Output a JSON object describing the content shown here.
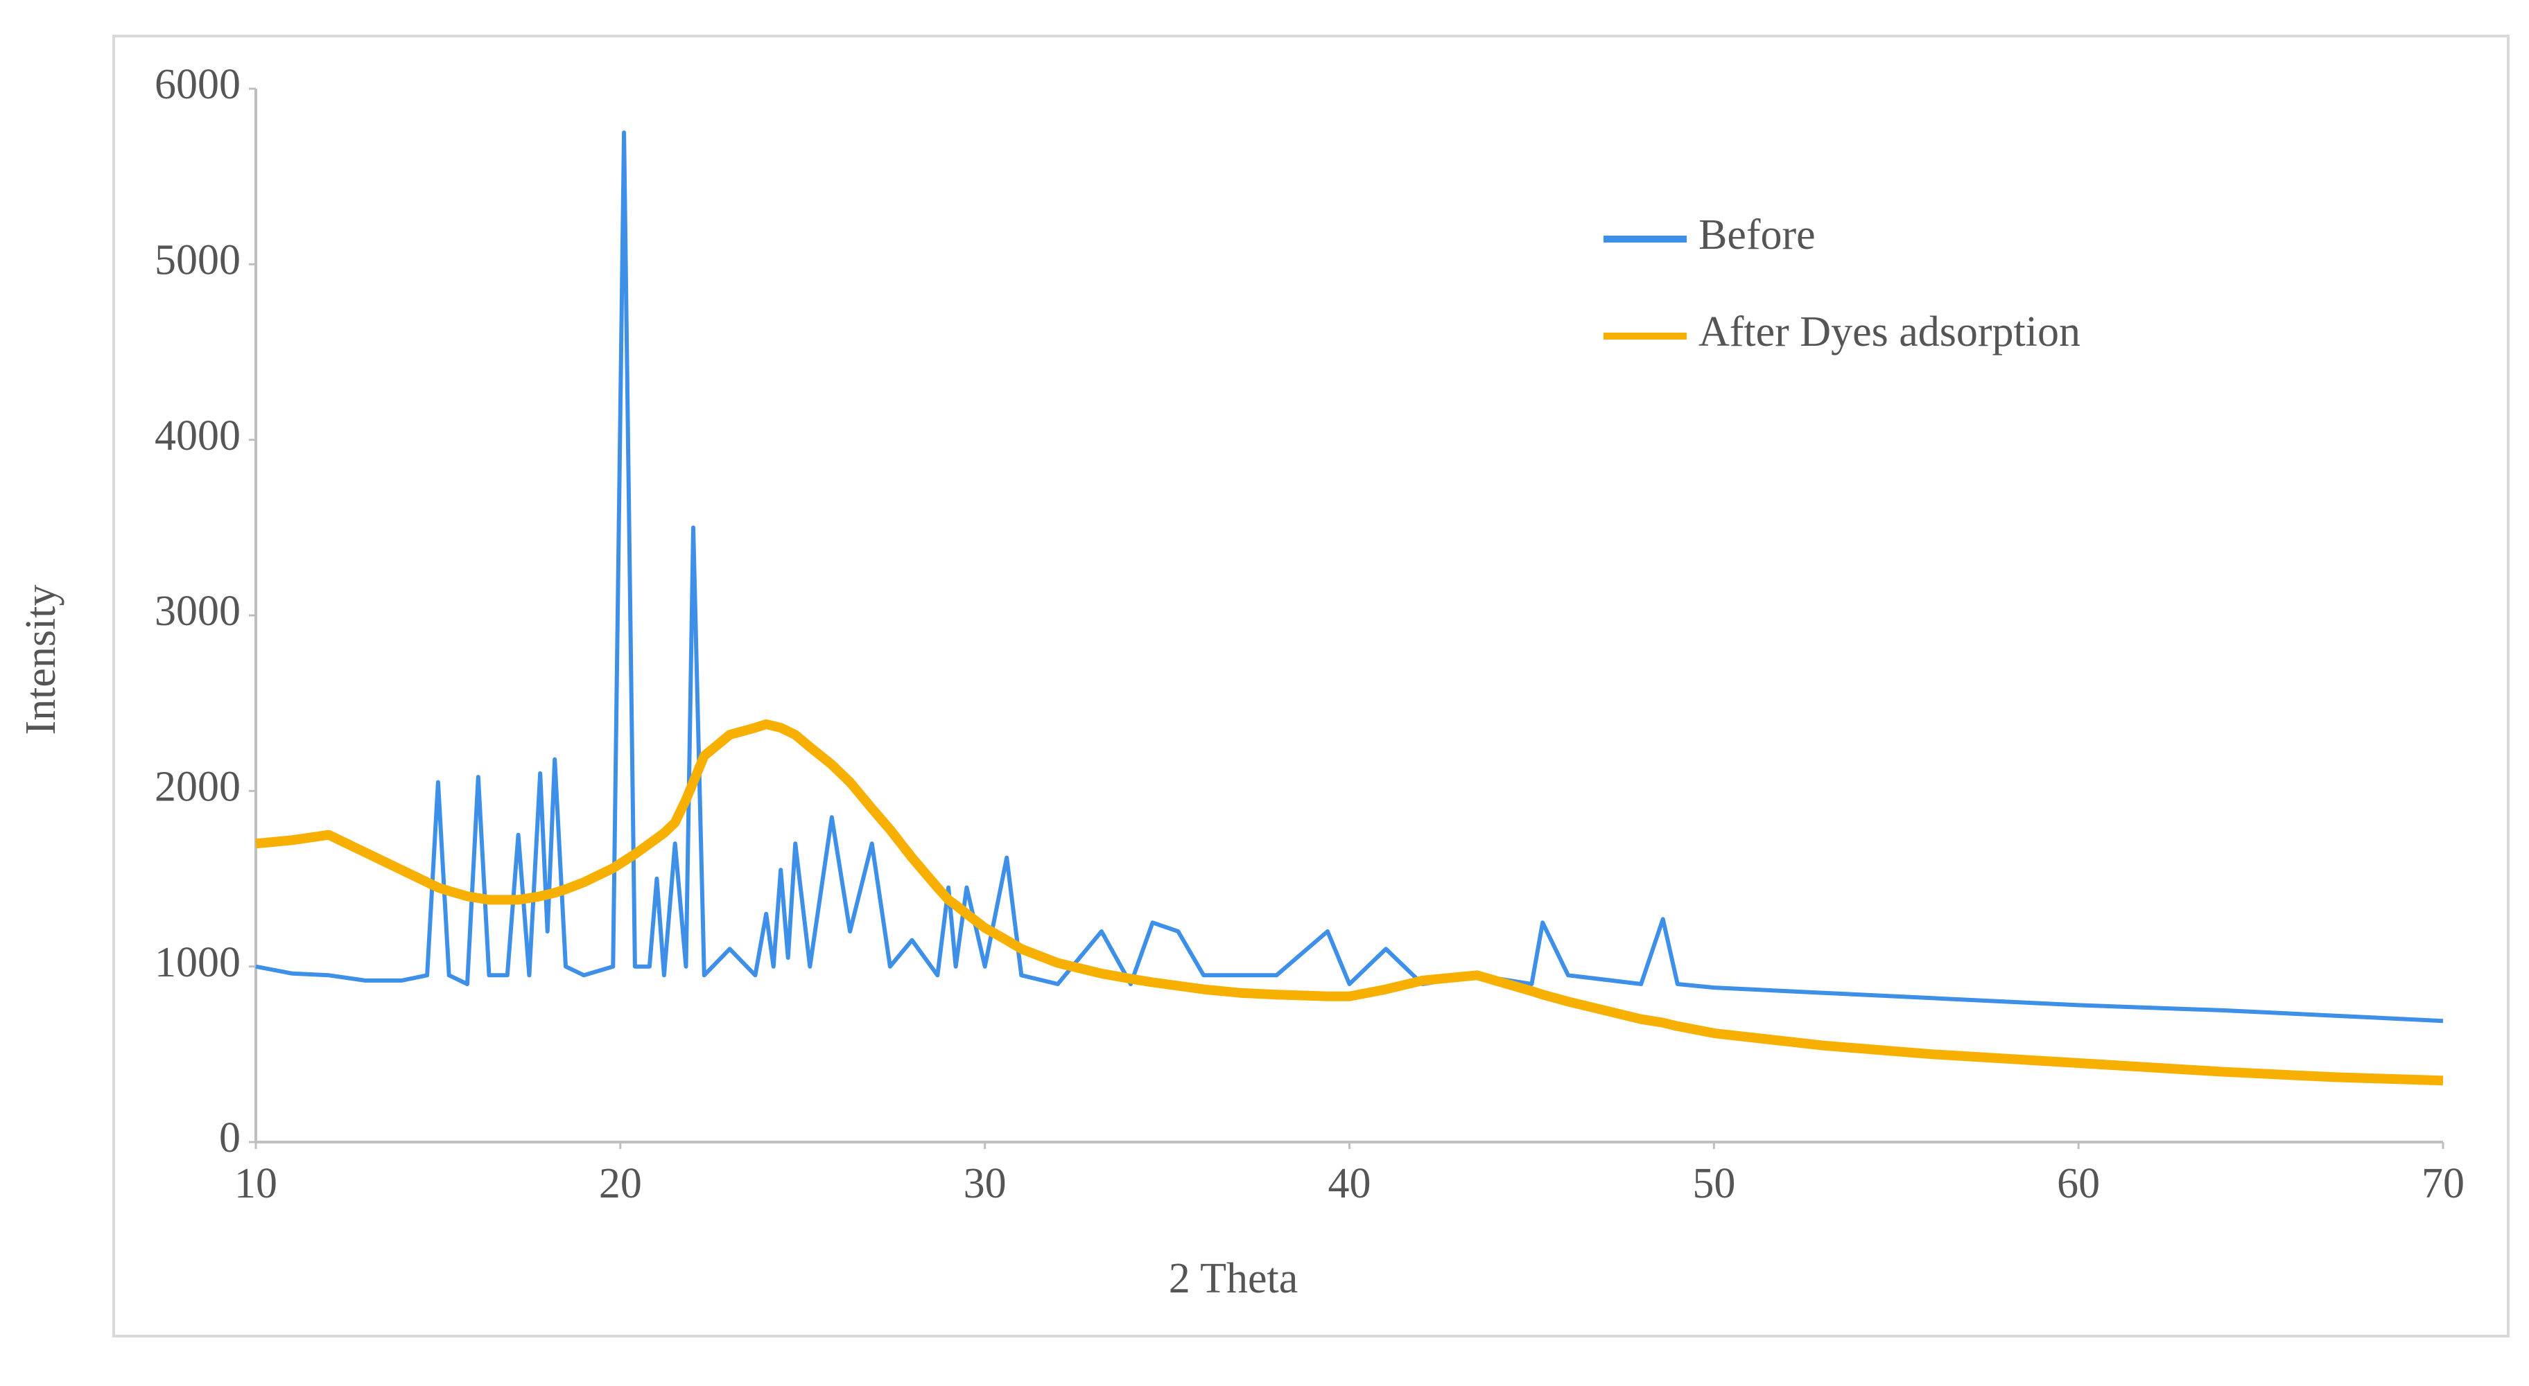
{
  "chart_data": {
    "type": "line",
    "x_label": "2 Theta",
    "y_label": "Intensity",
    "xlim": [
      10,
      70
    ],
    "xticks": [
      10,
      20,
      30,
      40,
      50,
      60,
      70
    ],
    "ylim": [
      0,
      6000
    ],
    "yticks": [
      0,
      1000,
      2000,
      3000,
      4000,
      5000,
      6000
    ],
    "x": [
      10,
      11,
      12,
      13,
      14,
      14.7,
      15.0,
      15.3,
      15.8,
      16.1,
      16.4,
      16.9,
      17.2,
      17.5,
      17.8,
      18.0,
      18.2,
      18.5,
      19.0,
      19.8,
      20.1,
      20.4,
      20.8,
      21.0,
      21.2,
      21.5,
      21.8,
      22.0,
      22.3,
      23.0,
      23.7,
      24.0,
      24.2,
      24.4,
      24.6,
      24.8,
      25.2,
      25.8,
      26.3,
      26.9,
      27.4,
      28.0,
      28.7,
      29.0,
      29.2,
      29.5,
      30.0,
      30.6,
      31.0,
      32.0,
      33.2,
      34.0,
      34.6,
      35.3,
      36.0,
      37.0,
      38.0,
      39.4,
      40.0,
      41.0,
      42.0,
      43.5,
      45.0,
      45.3,
      46.0,
      48.0,
      48.6,
      49.0,
      50.0,
      53.0,
      56.0,
      60.0,
      64.0,
      67.0,
      70.0
    ],
    "series": [
      {
        "name": "Before",
        "color": "#3d8fe8",
        "values": [
          1000,
          960,
          950,
          920,
          920,
          950,
          2050,
          950,
          900,
          2080,
          950,
          950,
          1750,
          950,
          2100,
          1200,
          2180,
          1000,
          950,
          1000,
          5750,
          1000,
          1000,
          1500,
          950,
          1700,
          1000,
          3500,
          950,
          1100,
          950,
          1300,
          1000,
          1550,
          1050,
          1700,
          1000,
          1850,
          1200,
          1700,
          1000,
          1150,
          950,
          1450,
          1000,
          1450,
          1000,
          1620,
          950,
          900,
          1200,
          900,
          1250,
          1200,
          950,
          950,
          950,
          1200,
          900,
          1100,
          900,
          950,
          900,
          1250,
          950,
          900,
          1270,
          900,
          880,
          850,
          820,
          780,
          750,
          720,
          690
        ]
      },
      {
        "name": "After Dyes adsorption",
        "color": "#f7b000",
        "values": [
          1700,
          1720,
          1750,
          1650,
          1550,
          1480,
          1450,
          1430,
          1400,
          1390,
          1380,
          1380,
          1380,
          1390,
          1400,
          1410,
          1420,
          1440,
          1480,
          1560,
          1600,
          1640,
          1700,
          1730,
          1760,
          1820,
          1950,
          2050,
          2200,
          2320,
          2360,
          2380,
          2370,
          2360,
          2340,
          2320,
          2250,
          2150,
          2050,
          1900,
          1780,
          1620,
          1450,
          1380,
          1350,
          1300,
          1220,
          1150,
          1100,
          1020,
          960,
          930,
          910,
          890,
          870,
          850,
          840,
          830,
          830,
          870,
          920,
          950,
          860,
          840,
          800,
          700,
          680,
          660,
          620,
          550,
          500,
          450,
          400,
          370,
          350
        ]
      }
    ]
  }
}
